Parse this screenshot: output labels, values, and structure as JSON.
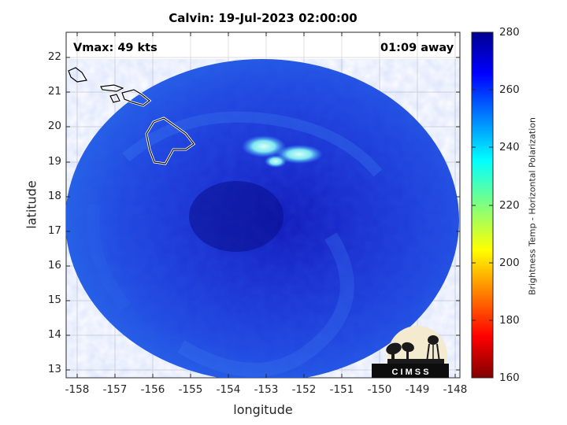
{
  "title": "Calvin: 19-Jul-2023 02:00:00",
  "annotations": {
    "vmax": "Vmax: 49 kts",
    "time_away": "01:09 away"
  },
  "axes": {
    "xlabel": "longitude",
    "ylabel": "latitude",
    "xticks": [
      "-158",
      "-157",
      "-156",
      "-155",
      "-154",
      "-153",
      "-152",
      "-151",
      "-150",
      "-149",
      "-148"
    ],
    "yticks": [
      "22",
      "21",
      "20",
      "19",
      "18",
      "17",
      "16",
      "15",
      "14",
      "13"
    ]
  },
  "colorbar": {
    "label": "Brightness Temp - Horizontal Polarization",
    "ticks": [
      "280",
      "260",
      "240",
      "220",
      "200",
      "180",
      "160"
    ],
    "range": [
      160,
      280
    ],
    "colormap": "jet"
  },
  "map": {
    "lon_range": [
      -158.2,
      -147.8
    ],
    "lat_range": [
      12.8,
      22.7
    ],
    "background_color": "#1f3fdf",
    "cold_cloud_color": "#7fe8f0",
    "center_lon": -153.6,
    "center_lat": 17.7,
    "coastline_color": "#ffffff",
    "grid": true
  },
  "logo": {
    "text": "C I M S S"
  }
}
